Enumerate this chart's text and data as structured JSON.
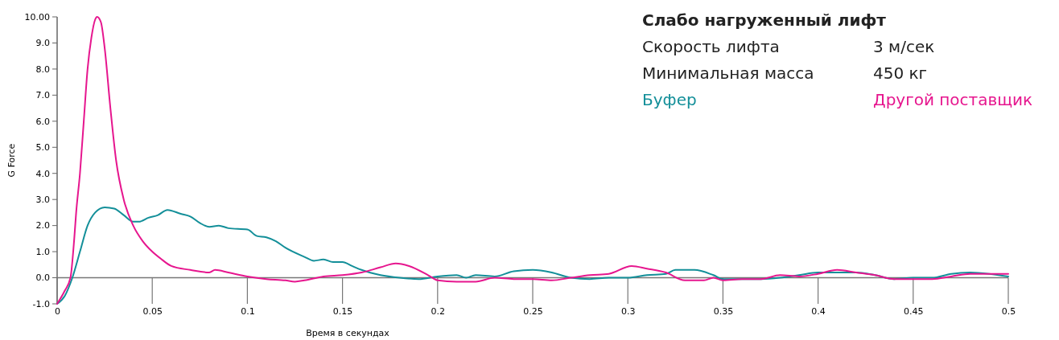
{
  "chart_data": {
    "type": "line",
    "title": "Слабо нагруженный лифт",
    "xlabel": "Время в секундах",
    "ylabel": "G Force",
    "annotations": [
      "Скорость лифта",
      "3 м/сек",
      "Минимальная масса",
      "450 кг"
    ],
    "legend": "top right",
    "grid": false,
    "ref_lines": [
      {
        "axis": "y",
        "value": 0,
        "color": "#777777"
      }
    ],
    "line_style": "solid",
    "xlim": [
      0,
      0.5
    ],
    "xticks": [
      0,
      0.05,
      0.1,
      0.15,
      0.2,
      0.25,
      0.3,
      0.35,
      0.4,
      0.45,
      0.5
    ],
    "ylim": [
      -1,
      10
    ],
    "yticks": [
      {
        "value": -1,
        "label": "-1.0"
      },
      {
        "value": 0,
        "label": "0.0"
      },
      {
        "value": 1,
        "label": "1.0"
      },
      {
        "value": 2,
        "label": "2.0"
      },
      {
        "value": 3,
        "label": "3.0"
      },
      {
        "value": 4,
        "label": "4.0"
      },
      {
        "value": 5,
        "label": "5.0"
      },
      {
        "value": 6,
        "label": "6.0"
      },
      {
        "value": 7,
        "label": "7.0"
      },
      {
        "value": 8,
        "label": "8.0"
      },
      {
        "value": 9,
        "label": "9.0"
      },
      {
        "value": 10,
        "label": "10.00"
      }
    ],
    "series": [
      {
        "name": "Буфер",
        "color": "#138f99",
        "x": [
          0,
          0.004,
          0.008,
          0.012,
          0.016,
          0.02,
          0.025,
          0.03,
          0.035,
          0.04,
          0.043,
          0.048,
          0.053,
          0.058,
          0.065,
          0.07,
          0.075,
          0.08,
          0.085,
          0.09,
          0.1,
          0.105,
          0.11,
          0.115,
          0.12,
          0.13,
          0.135,
          0.14,
          0.145,
          0.15,
          0.155,
          0.16,
          0.17,
          0.18,
          0.19,
          0.2,
          0.21,
          0.215,
          0.22,
          0.23,
          0.24,
          0.25,
          0.26,
          0.27,
          0.28,
          0.29,
          0.3,
          0.31,
          0.32,
          0.325,
          0.335,
          0.345,
          0.35,
          0.36,
          0.37,
          0.38,
          0.39,
          0.4,
          0.41,
          0.42,
          0.43,
          0.44,
          0.45,
          0.46,
          0.47,
          0.48,
          0.49,
          0.5
        ],
        "values": [
          -1.0,
          -0.7,
          0,
          1.0,
          2.0,
          2.5,
          2.7,
          2.65,
          2.4,
          2.15,
          2.15,
          2.3,
          2.4,
          2.6,
          2.45,
          2.35,
          2.1,
          1.95,
          2.0,
          1.9,
          1.85,
          1.6,
          1.55,
          1.4,
          1.15,
          0.8,
          0.65,
          0.7,
          0.6,
          0.6,
          0.45,
          0.3,
          0.1,
          0.0,
          -0.05,
          0.05,
          0.1,
          0.0,
          0.1,
          0.05,
          0.25,
          0.3,
          0.2,
          0.0,
          -0.05,
          0.0,
          0.0,
          0.1,
          0.15,
          0.3,
          0.3,
          0.1,
          -0.05,
          -0.05,
          -0.05,
          0.0,
          0.1,
          0.2,
          0.2,
          0.2,
          0.1,
          -0.05,
          0.0,
          0.0,
          0.15,
          0.2,
          0.15,
          0.05
        ]
      },
      {
        "name": "Другой поставщик",
        "color": "#e6168e",
        "x": [
          0,
          0.004,
          0.007,
          0.009,
          0.01,
          0.012,
          0.014,
          0.016,
          0.018,
          0.02,
          0.021,
          0.023,
          0.025,
          0.028,
          0.031,
          0.035,
          0.04,
          0.045,
          0.05,
          0.055,
          0.06,
          0.07,
          0.08,
          0.083,
          0.09,
          0.1,
          0.11,
          0.12,
          0.125,
          0.13,
          0.14,
          0.15,
          0.16,
          0.17,
          0.178,
          0.185,
          0.195,
          0.2,
          0.21,
          0.22,
          0.23,
          0.24,
          0.25,
          0.26,
          0.27,
          0.28,
          0.29,
          0.302,
          0.31,
          0.32,
          0.33,
          0.34,
          0.345,
          0.35,
          0.36,
          0.37,
          0.38,
          0.39,
          0.4,
          0.41,
          0.42,
          0.43,
          0.44,
          0.45,
          0.46,
          0.47,
          0.48,
          0.49,
          0.5
        ],
        "values": [
          -1.0,
          -0.5,
          0,
          1.5,
          2.5,
          4.0,
          6.0,
          8.0,
          9.2,
          9.9,
          10.0,
          9.8,
          8.8,
          6.5,
          4.5,
          3.0,
          2.0,
          1.4,
          1.0,
          0.7,
          0.45,
          0.3,
          0.2,
          0.3,
          0.2,
          0.05,
          -0.05,
          -0.1,
          -0.15,
          -0.1,
          0.05,
          0.1,
          0.2,
          0.4,
          0.55,
          0.45,
          0.1,
          -0.1,
          -0.15,
          -0.15,
          0.0,
          -0.05,
          -0.05,
          -0.1,
          0.0,
          0.1,
          0.15,
          0.45,
          0.35,
          0.2,
          -0.1,
          -0.1,
          0.0,
          -0.1,
          -0.05,
          -0.05,
          0.1,
          0.05,
          0.15,
          0.3,
          0.2,
          0.1,
          -0.05,
          -0.05,
          -0.05,
          0.05,
          0.15,
          0.15,
          0.15
        ]
      }
    ]
  }
}
